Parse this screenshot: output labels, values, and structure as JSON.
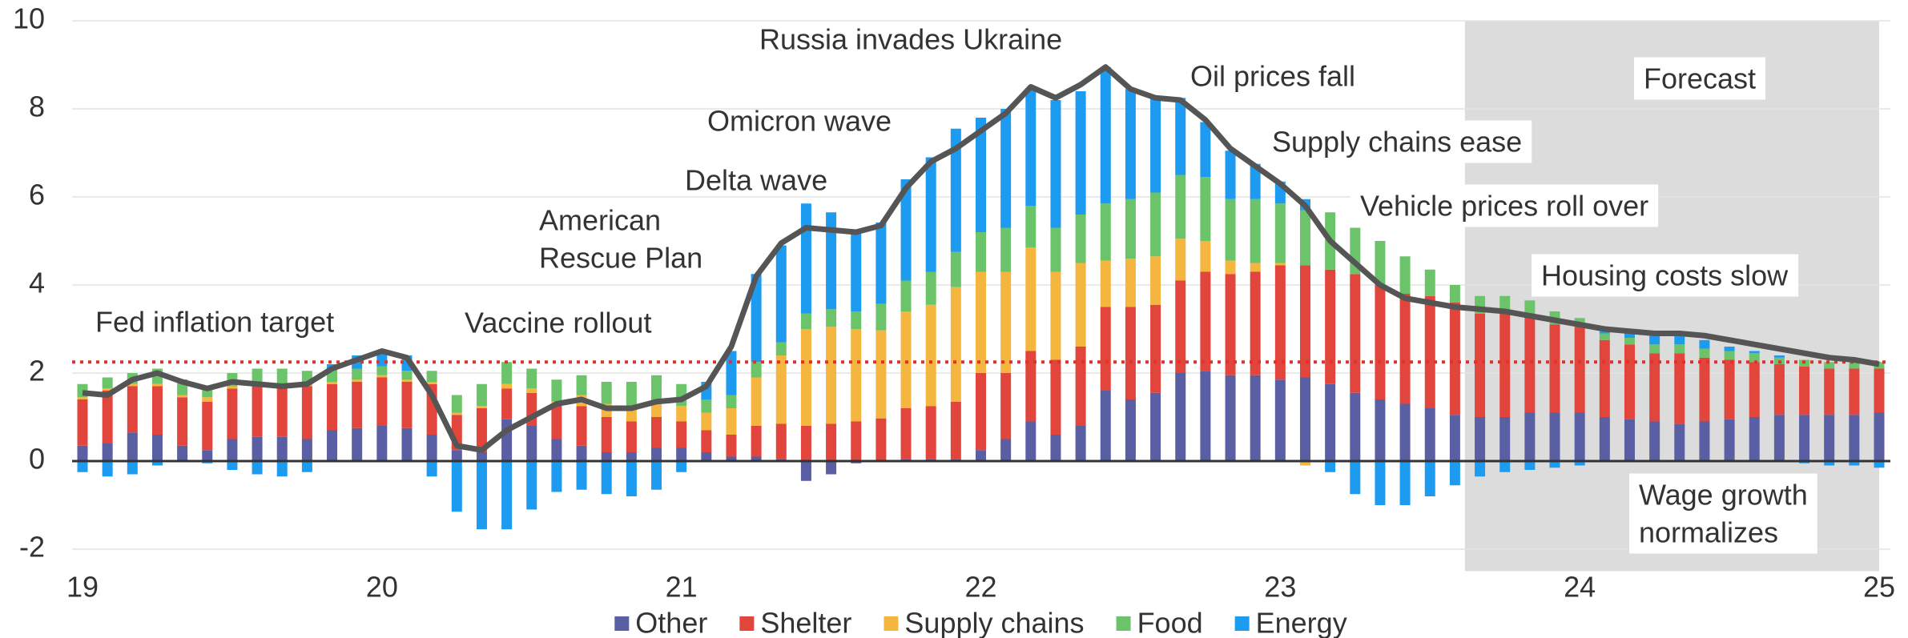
{
  "chart_data": {
    "type": "bar",
    "categories": [
      "19",
      null,
      null,
      null,
      null,
      null,
      null,
      null,
      null,
      null,
      null,
      null,
      "20",
      null,
      null,
      null,
      null,
      null,
      null,
      null,
      null,
      null,
      null,
      null,
      "21",
      null,
      null,
      null,
      null,
      null,
      null,
      null,
      null,
      null,
      null,
      null,
      "22",
      null,
      null,
      null,
      null,
      null,
      null,
      null,
      null,
      null,
      null,
      null,
      "23",
      null,
      null,
      null,
      null,
      null,
      null,
      null,
      null,
      null,
      null,
      null,
      "24",
      null,
      null,
      null,
      null,
      null,
      null,
      null,
      null,
      null,
      null,
      null,
      "25"
    ],
    "series": [
      {
        "name": "Other",
        "color": "#5a5ea3",
        "values": [
          0.35,
          0.4,
          0.65,
          0.6,
          0.35,
          0.25,
          0.5,
          0.55,
          0.55,
          0.5,
          0.7,
          0.75,
          0.8,
          0.75,
          0.6,
          0.25,
          0.2,
          0.95,
          0.8,
          0.5,
          0.35,
          0.2,
          0.2,
          0.3,
          0.3,
          0.2,
          0.1,
          0.1,
          0.05,
          -0.45,
          -0.3,
          -0.05,
          0.02,
          0.05,
          0.05,
          0.05,
          0.25,
          0.5,
          0.9,
          0.6,
          0.8,
          1.6,
          1.4,
          1.55,
          2.0,
          2.05,
          1.95,
          1.95,
          1.85,
          1.9,
          1.75,
          1.55,
          1.4,
          1.3,
          1.2,
          1.05,
          1.0,
          1.0,
          1.1,
          1.1,
          1.1,
          1.0,
          0.95,
          0.9,
          0.85,
          0.9,
          0.95,
          1.0,
          1.05,
          1.05,
          1.05,
          1.05,
          1.1
        ]
      },
      {
        "name": "Shelter",
        "color": "#e2453c",
        "values": [
          1.05,
          1.2,
          1.05,
          1.1,
          1.1,
          1.1,
          1.15,
          1.15,
          1.15,
          1.2,
          1.05,
          1.05,
          1.1,
          1.05,
          1.15,
          0.8,
          1.0,
          0.7,
          0.75,
          0.8,
          0.9,
          0.8,
          0.7,
          0.7,
          0.6,
          0.5,
          0.5,
          0.7,
          0.8,
          0.8,
          0.85,
          0.9,
          0.95,
          1.15,
          1.2,
          1.3,
          1.75,
          1.5,
          1.6,
          1.7,
          1.8,
          1.9,
          2.1,
          2.0,
          2.1,
          2.25,
          2.3,
          2.35,
          2.6,
          2.55,
          2.6,
          2.7,
          2.6,
          2.5,
          2.55,
          2.55,
          2.35,
          2.35,
          2.2,
          2.0,
          1.95,
          1.75,
          1.7,
          1.55,
          1.6,
          1.45,
          1.35,
          1.25,
          1.15,
          1.1,
          1.05,
          1.05,
          1.0
        ]
      },
      {
        "name": "Supply chains",
        "color": "#f4b63f",
        "values": [
          0.05,
          0.05,
          0.05,
          0.05,
          0.05,
          0.1,
          0.05,
          0.05,
          0.05,
          0.05,
          0.05,
          0.05,
          0.05,
          0.05,
          0.05,
          0.05,
          0.05,
          0.1,
          0.1,
          0.05,
          0.25,
          0.3,
          0.35,
          0.35,
          0.35,
          0.4,
          0.6,
          1.1,
          1.55,
          2.2,
          2.2,
          2.1,
          2.0,
          2.2,
          2.3,
          2.6,
          2.3,
          2.3,
          2.35,
          2.0,
          1.9,
          1.05,
          1.1,
          1.1,
          0.95,
          0.7,
          0.3,
          0.2,
          0.05,
          -0.1,
          0,
          0,
          0,
          0,
          0,
          0,
          0,
          0,
          0,
          0,
          0,
          0,
          0,
          0,
          0,
          0,
          0,
          0,
          0,
          0,
          0,
          0,
          0
        ]
      },
      {
        "name": "Food",
        "color": "#6cc46a",
        "values": [
          0.3,
          0.25,
          0.25,
          0.35,
          0.3,
          0.25,
          0.3,
          0.35,
          0.35,
          0.3,
          0.3,
          0.25,
          0.2,
          0.2,
          0.25,
          0.4,
          0.5,
          0.5,
          0.45,
          0.5,
          0.45,
          0.5,
          0.55,
          0.6,
          0.5,
          0.3,
          0.3,
          0.35,
          0.3,
          0.35,
          0.4,
          0.4,
          0.6,
          0.7,
          0.75,
          0.8,
          0.9,
          1.0,
          0.95,
          1.0,
          1.1,
          1.3,
          1.35,
          1.45,
          1.45,
          1.45,
          1.4,
          1.45,
          1.35,
          1.25,
          1.3,
          1.05,
          1.0,
          0.85,
          0.6,
          0.4,
          0.4,
          0.4,
          0.35,
          0.3,
          0.2,
          0.15,
          0.15,
          0.2,
          0.2,
          0.2,
          0.2,
          0.2,
          0.15,
          0.15,
          0.15,
          0.15,
          0.15
        ]
      },
      {
        "name": "Energy",
        "color": "#1d9bf0",
        "values": [
          -0.25,
          -0.35,
          -0.3,
          -0.1,
          0.05,
          -0.05,
          -0.2,
          -0.3,
          -0.35,
          -0.25,
          0.1,
          0.3,
          0.35,
          0.35,
          -0.35,
          -1.15,
          -1.55,
          -1.55,
          -1.1,
          -0.7,
          -0.65,
          -0.75,
          -0.8,
          -0.65,
          -0.25,
          0.4,
          1.0,
          2.0,
          2.2,
          2.5,
          2.2,
          1.8,
          1.85,
          2.3,
          2.6,
          2.8,
          2.6,
          2.7,
          2.65,
          2.9,
          2.8,
          3.1,
          2.5,
          2.2,
          1.75,
          1.25,
          1.1,
          0.8,
          0.5,
          0.25,
          -0.25,
          -0.75,
          -1.0,
          -1.0,
          -0.8,
          -0.55,
          -0.35,
          -0.25,
          -0.2,
          -0.15,
          -0.1,
          0.05,
          0.1,
          0.25,
          0.25,
          0.2,
          0.1,
          0.05,
          0.05,
          -0.05,
          -0.1,
          -0.1,
          -0.15
        ]
      }
    ],
    "line": {
      "color": "#555555",
      "values": [
        1.55,
        1.5,
        1.85,
        2.0,
        1.8,
        1.65,
        1.8,
        1.75,
        1.7,
        1.75,
        2.1,
        2.3,
        2.5,
        2.35,
        1.5,
        0.35,
        0.25,
        0.7,
        1.0,
        1.3,
        1.4,
        1.2,
        1.2,
        1.35,
        1.4,
        1.7,
        2.6,
        4.2,
        4.95,
        5.3,
        5.25,
        5.2,
        5.35,
        6.2,
        6.8,
        7.1,
        7.5,
        7.9,
        8.5,
        8.25,
        8.55,
        8.95,
        8.45,
        8.25,
        8.2,
        7.75,
        7.1,
        6.7,
        6.3,
        5.8,
        5.0,
        4.5,
        4.0,
        3.7,
        3.6,
        3.5,
        3.45,
        3.4,
        3.3,
        3.2,
        3.1,
        3.0,
        2.95,
        2.9,
        2.9,
        2.85,
        2.75,
        2.65,
        2.55,
        2.45,
        2.35,
        2.3,
        2.2
      ]
    },
    "target": {
      "label": "Fed inflation target",
      "value": 2.25,
      "color": "#e2302a"
    },
    "forecast": {
      "label": "Forecast",
      "from": 56,
      "to": 72,
      "color": "#dcdcdc"
    },
    "annotations": [
      [
        "Vaccine rollout"
      ],
      [
        "American",
        "Rescue Plan"
      ],
      [
        "Delta wave"
      ],
      [
        "Omicron wave"
      ],
      [
        "Russia invades Ukraine"
      ],
      [
        "Oil prices fall"
      ],
      [
        "Supply chains ease"
      ],
      [
        "Vehicle prices roll over"
      ],
      [
        "Housing costs slow"
      ],
      [
        "Wage growth",
        "normalizes"
      ]
    ],
    "ylim": [
      -2.5,
      10
    ],
    "yticks": [
      -2,
      0,
      2,
      4,
      6,
      8,
      10
    ],
    "grid": true
  }
}
